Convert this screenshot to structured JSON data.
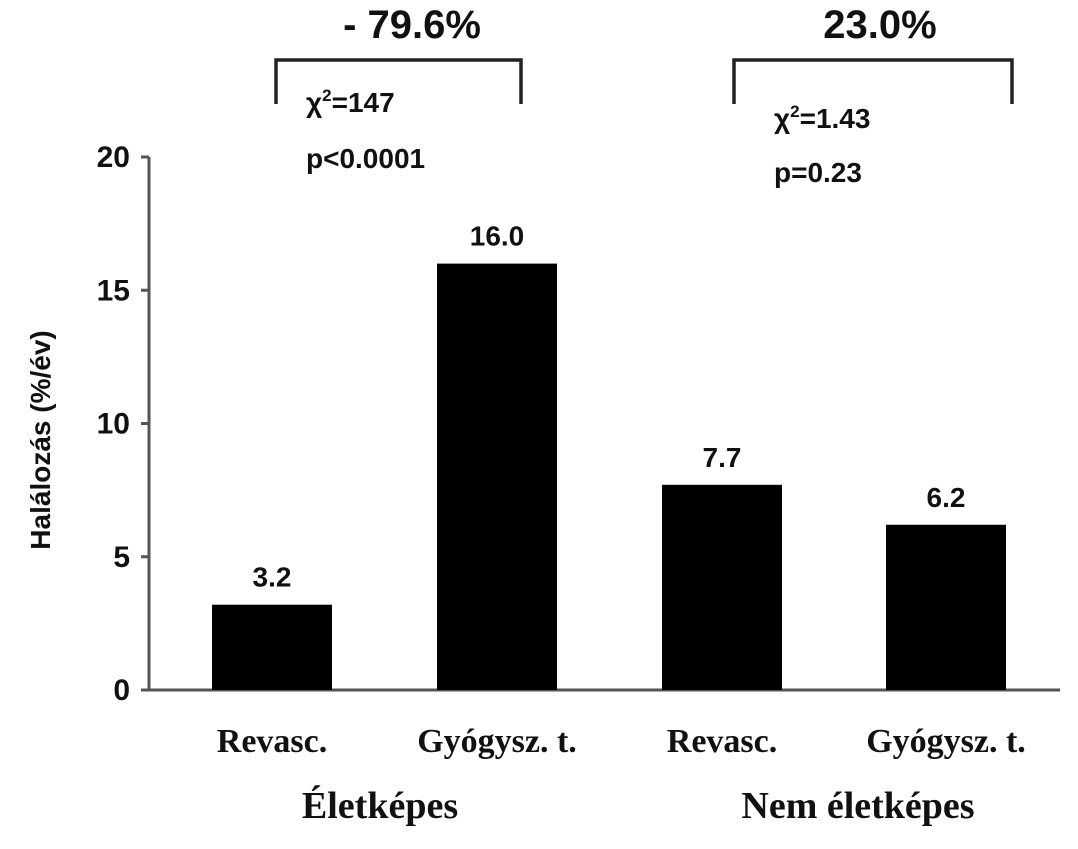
{
  "chart_data": {
    "type": "bar",
    "ylabel": "Halálozás (%/év)",
    "ylim": [
      0,
      20
    ],
    "yticks": [
      "0",
      "5",
      "10",
      "15",
      "20"
    ],
    "yticks_values": [
      0,
      5,
      10,
      15,
      20
    ],
    "categories": [
      "Revasc.",
      "Gyógysz. t.",
      "Revasc.",
      "Gyógysz. t."
    ],
    "values": [
      3.2,
      16.0,
      7.7,
      6.2
    ],
    "value_labels": [
      "3.2",
      "16.0",
      "7.7",
      "6.2"
    ],
    "bar_color": "#000000",
    "grid": false,
    "groups": [
      {
        "label": "Életképes",
        "comparison": {
          "percent": "- 79.6%",
          "chi": "χ",
          "chi_sup": "2",
          "chi_value": "=147",
          "p": "p<0.0001"
        }
      },
      {
        "label": "Nem életképes",
        "comparison": {
          "percent": "23.0%",
          "chi": "χ",
          "chi_sup": "2",
          "chi_value": "=1.43",
          "p": "p=0.23"
        }
      }
    ]
  }
}
